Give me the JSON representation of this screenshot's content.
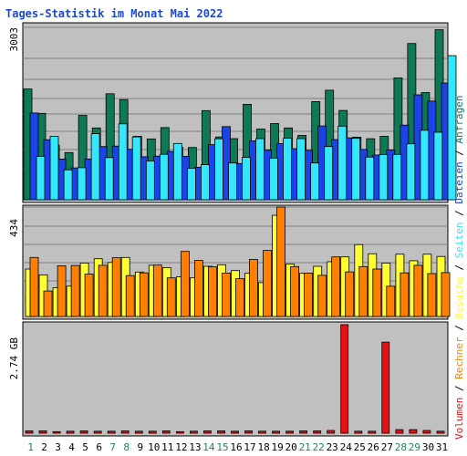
{
  "chart_data": {
    "type": "bar",
    "title": "Tages-Statistik im Monat Mai 2022",
    "categories": [
      "1",
      "2",
      "3",
      "4",
      "5",
      "6",
      "7",
      "8",
      "9",
      "10",
      "11",
      "12",
      "13",
      "14",
      "15",
      "16",
      "17",
      "18",
      "19",
      "20",
      "21",
      "22",
      "23",
      "24",
      "25",
      "26",
      "27",
      "28",
      "29",
      "30",
      "31"
    ],
    "weekend_days": [
      "1",
      "7",
      "8",
      "14",
      "15",
      "21",
      "22",
      "28",
      "29"
    ],
    "colors": {
      "title": "#1a48d6",
      "frame": "#000000",
      "panel_bg": "#c0c0c0",
      "grid": "#808080",
      "anfragen": "#0e7a55",
      "dateien": "#1a44e6",
      "seiten": "#33e7ff",
      "besuche": "#ffff33",
      "rechner": "#ff8000",
      "volumen": "#e81010",
      "weekday_label": "#000000",
      "weekend_label": "#1a8a50"
    },
    "panels": [
      {
        "id": "requests",
        "axis_label": "3003",
        "ymax": 3003,
        "series": [
          {
            "name": "Anfragen",
            "color": "#0e7a55",
            "values": [
              1929,
              1504,
              952,
              821,
              1470,
              1251,
              1847,
              1745,
              1104,
              1060,
              1257,
              914,
              911,
              1553,
              1093,
              1064,
              1662,
              1231,
              1327,
              1251,
              1120,
              1710,
              1908,
              1555,
              1090,
              1063,
              1105,
              2123,
              2722,
              1867,
              2961
            ]
          },
          {
            "name": "Dateien",
            "color": "#1a44e6",
            "values": [
              1511,
              1046,
              709,
              554,
              710,
              926,
              934,
              879,
              749,
              759,
              842,
              757,
              566,
              960,
              1274,
              631,
              1026,
              866,
              978,
              889,
              860,
              1286,
              1048,
              1079,
              877,
              779,
              867,
              1300,
              1827,
              1719,
              2033
            ]
          },
          {
            "name": "Seiten",
            "color": "#33e7ff",
            "values": [
              755,
              1103,
              521,
              558,
              1150,
              734,
              1322,
              1095,
              676,
              792,
              980,
              550,
              610,
              1061,
              641,
              739,
              1064,
              724,
              1071,
              1064,
              640,
              926,
              1283,
              1069,
              743,
              786,
              789,
              974,
              1209,
              1175,
              2511
            ]
          }
        ]
      },
      {
        "id": "visits",
        "axis_label": "434",
        "ymax": 434,
        "series": [
          {
            "name": "Besuche",
            "color": "#ffff33",
            "values": [
              188,
              165,
              114,
              120,
              212,
              229,
              214,
              234,
              176,
              203,
              193,
              157,
              153,
              199,
              205,
              182,
              171,
              134,
              401,
              208,
              171,
              199,
              217,
              236,
              285,
              249,
              212,
              247,
              221,
              247,
              238
            ]
          },
          {
            "name": "Rechner",
            "color": "#ff8000",
            "values": [
              234,
              101,
              201,
              202,
              168,
              203,
              233,
              162,
              173,
              204,
              153,
              258,
              222,
              197,
              172,
              150,
              226,
              262,
              434,
              198,
              172,
              163,
              236,
              177,
              198,
              188,
              120,
              173,
              203,
              170,
              174
            ]
          }
        ]
      },
      {
        "id": "volume",
        "axis_label": "2.74 GB",
        "ymax": 2.74,
        "series": [
          {
            "name": "Volumen",
            "color": "#e81010",
            "values": [
              0.06,
              0.06,
              0.04,
              0.05,
              0.06,
              0.05,
              0.05,
              0.06,
              0.05,
              0.05,
              0.06,
              0.04,
              0.05,
              0.06,
              0.06,
              0.05,
              0.06,
              0.05,
              0.05,
              0.05,
              0.06,
              0.06,
              0.07,
              2.74,
              0.05,
              0.05,
              2.3,
              0.09,
              0.09,
              0.07,
              0.05
            ]
          }
        ]
      }
    ],
    "legend": [
      {
        "text": "Volumen",
        "color": "#e81010"
      },
      {
        "text": "Rechner",
        "color": "#ff8000"
      },
      {
        "text": "Besuche",
        "color": "#ffff33"
      },
      {
        "text": "Seiten",
        "color": "#33e7ff"
      },
      {
        "text": "Dateien",
        "color": "#1a44e6"
      },
      {
        "text": "Anfragen",
        "color": "#0e7a55"
      }
    ],
    "legend_separator": " / ",
    "legend_placement": "right (vertical)",
    "grid": true
  }
}
